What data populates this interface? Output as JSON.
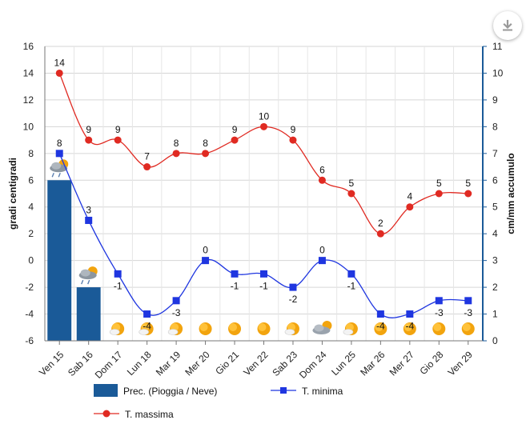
{
  "chart_data": {
    "type": "bar+line",
    "categories": [
      "Ven 15",
      "Sab 16",
      "Dom 17",
      "Lun 18",
      "Mar 19",
      "Mer 20",
      "Gio 21",
      "Ven 22",
      "Sab 23",
      "Dom 24",
      "Lun 25",
      "Mar 26",
      "Mer 27",
      "Gio 28",
      "Ven 29"
    ],
    "ylabel": "gradi centigradi",
    "y2label": "cm/mm accumulo",
    "ylim": [
      -6,
      16
    ],
    "y2lim": [
      0,
      11
    ],
    "yticks": [
      -6,
      -4,
      -2,
      0,
      2,
      4,
      6,
      8,
      10,
      12,
      14,
      16
    ],
    "y2ticks": [
      0,
      1,
      2,
      3,
      4,
      5,
      6,
      7,
      8,
      9,
      10,
      11
    ],
    "grid": true,
    "legend_position": "bottom",
    "series": [
      {
        "name": "Prec. (Pioggia / Neve)",
        "kind": "bar",
        "axis": "right",
        "color": "#1a5a98",
        "values": [
          6,
          2,
          0,
          0,
          0,
          0,
          0,
          0,
          0,
          0,
          0,
          0,
          0,
          0,
          0
        ]
      },
      {
        "name": "T. minima",
        "kind": "line",
        "axis": "left",
        "color": "#1f36e0",
        "marker": "square",
        "values": [
          8,
          3,
          -1,
          -4,
          -3,
          0,
          -1,
          -1,
          -2,
          0,
          -1,
          -4,
          -4,
          -3,
          -3
        ]
      },
      {
        "name": "T. massima",
        "kind": "line",
        "axis": "left",
        "color": "#e02a22",
        "marker": "circle",
        "values": [
          14,
          9,
          9,
          7,
          8,
          8,
          9,
          10,
          9,
          6,
          5,
          2,
          4,
          5,
          5
        ]
      }
    ],
    "weather_icons": [
      "rain-snow-icon",
      "rain-snow-icon",
      "sun-cloud-icon",
      "sun-cloud-icon",
      "sun-cloud-icon",
      "sun-icon",
      "sun-icon",
      "sun-icon",
      "sun-cloud-icon",
      "cloud-icon",
      "sun-cloud-icon",
      "sun-icon",
      "sun-icon",
      "sun-icon",
      "sun-icon"
    ]
  },
  "toolbar": {
    "download_icon": "download-icon"
  }
}
